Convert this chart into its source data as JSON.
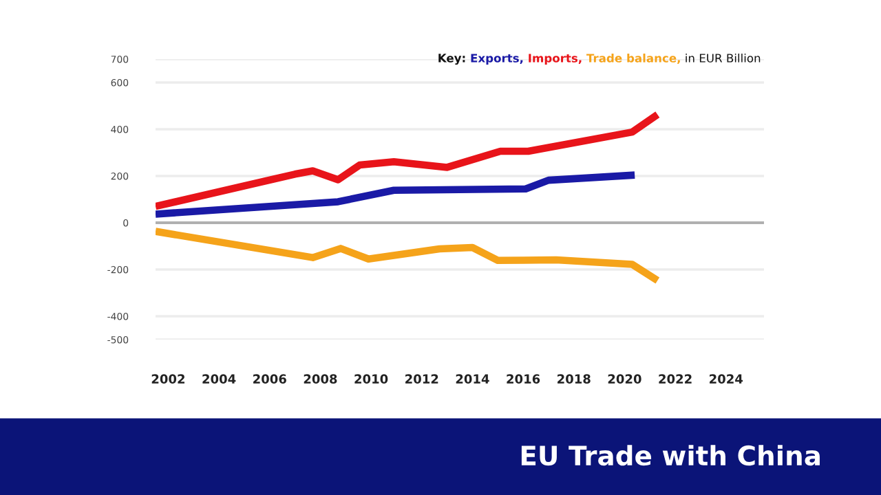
{
  "chart_data": {
    "type": "line",
    "title": "EU Trade with China",
    "legend_title": "Key:",
    "annotations": [
      "in EUR Billion"
    ],
    "xlim": [
      2001.5,
      2025.5
    ],
    "xticks": [
      2002,
      2004,
      2006,
      2008,
      2010,
      2012,
      2014,
      2016,
      2018,
      2020,
      2022,
      2024
    ],
    "ylim": [
      -500,
      700
    ],
    "yticks": [
      -500,
      -400,
      -200,
      0,
      200,
      400,
      600,
      700
    ],
    "grid": "y",
    "legend": "top right",
    "ref_lines": [
      {
        "axis": "y",
        "value": 0,
        "color": "#b0b0b0"
      }
    ],
    "series": [
      {
        "name": "Exports,",
        "color": "#1a1aa6",
        "x": [
          2001.5,
          2008.7,
          2010.9,
          2016.1,
          2017.0,
          2020.4
        ],
        "values": [
          37,
          90,
          139,
          145,
          182,
          204
        ]
      },
      {
        "name": "Imports,",
        "color": "#e8141a",
        "x": [
          2001.5,
          2007.0,
          2007.7,
          2008.7,
          2009.55,
          2010.9,
          2013.0,
          2015.1,
          2016.2,
          2020.3,
          2021.3
        ],
        "values": [
          70,
          208,
          222,
          184,
          247,
          261,
          237,
          306,
          306,
          388,
          463
        ]
      },
      {
        "name": "Trade balance,",
        "color": "#f5a31a",
        "x": [
          2001.5,
          2007.7,
          2008.8,
          2009.9,
          2012.7,
          2014.0,
          2015.0,
          2017.3,
          2020.3,
          2021.3
        ],
        "values": [
          -37,
          -149,
          -110,
          -155,
          -112,
          -106,
          -161,
          -159,
          -178,
          -247
        ]
      }
    ]
  }
}
